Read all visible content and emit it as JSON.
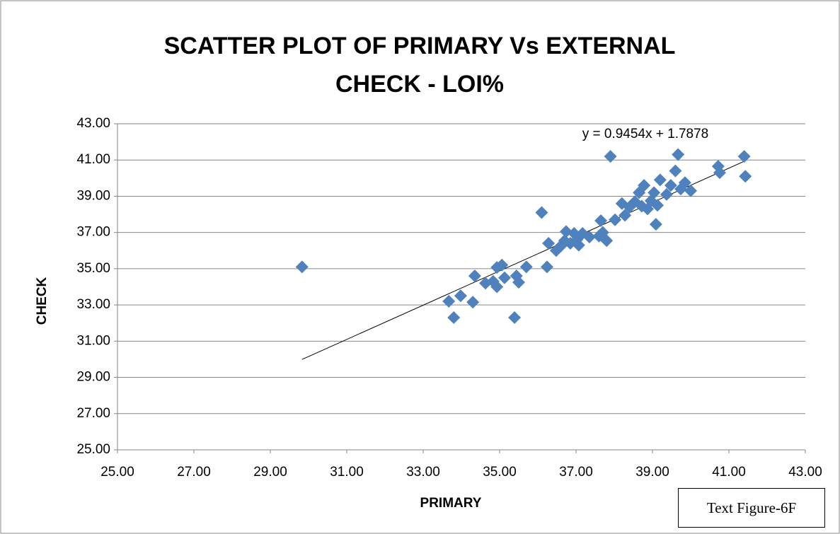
{
  "chart_data": {
    "type": "scatter",
    "title": "SCATTER PLOT OF PRIMARY Vs EXTERNAL CHECK - LOI%",
    "x_label": "PRIMARY",
    "y_label": "CHECK",
    "annotation": "Text Figure-6F",
    "trendline": {
      "slope": 0.9454,
      "intercept": 1.7878,
      "label": "y = 0.9454x + 1.7878"
    },
    "color": "#4f81bd",
    "grid": true,
    "xlim": [
      25,
      43
    ],
    "ylim": [
      25,
      43
    ],
    "xticks": [
      {
        "value": 25,
        "label": "25.00"
      },
      {
        "value": 27,
        "label": "27.00"
      },
      {
        "value": 29,
        "label": "29.00"
      },
      {
        "value": 31,
        "label": "31.00"
      },
      {
        "value": 33,
        "label": "33.00"
      },
      {
        "value": 35,
        "label": "35.00"
      },
      {
        "value": 37,
        "label": "37.00"
      },
      {
        "value": 39,
        "label": "39.00"
      },
      {
        "value": 41,
        "label": "41.00"
      },
      {
        "value": 43,
        "label": "43.00"
      }
    ],
    "yticks": [
      {
        "value": 25,
        "label": "25.00"
      },
      {
        "value": 27,
        "label": "27.00"
      },
      {
        "value": 29,
        "label": "29.00"
      },
      {
        "value": 31,
        "label": "31.00"
      },
      {
        "value": 33,
        "label": "33.00"
      },
      {
        "value": 35,
        "label": "35.00"
      },
      {
        "value": 37,
        "label": "37.00"
      },
      {
        "value": 39,
        "label": "39.00"
      },
      {
        "value": 41,
        "label": "41.00"
      },
      {
        "value": 43,
        "label": "43.00"
      }
    ],
    "x": [
      29.83,
      33.67,
      33.8,
      33.98,
      34.3,
      34.35,
      34.63,
      34.83,
      34.93,
      34.93,
      35.06,
      35.13,
      35.39,
      35.44,
      35.5,
      35.7,
      36.1,
      36.24,
      36.28,
      36.48,
      36.6,
      36.7,
      36.74,
      36.85,
      36.95,
      37.02,
      37.07,
      37.17,
      37.35,
      37.6,
      37.65,
      37.7,
      37.8,
      37.9,
      38.02,
      38.2,
      38.28,
      38.4,
      38.54,
      38.65,
      38.72,
      38.78,
      38.87,
      38.96,
      39.04,
      39.09,
      39.13,
      39.2,
      39.37,
      39.48,
      39.6,
      39.67,
      39.74,
      39.85,
      40.0,
      40.72,
      40.76,
      41.4,
      41.43
    ],
    "values": [
      35.1,
      33.2,
      32.3,
      33.5,
      33.15,
      34.6,
      34.2,
      34.3,
      34.0,
      35.07,
      35.2,
      34.5,
      32.3,
      34.6,
      34.25,
      35.1,
      38.1,
      35.1,
      36.4,
      36.0,
      36.25,
      36.55,
      37.05,
      36.4,
      36.95,
      36.6,
      36.3,
      36.95,
      36.75,
      36.8,
      37.65,
      37.0,
      36.55,
      41.2,
      37.7,
      38.6,
      37.95,
      38.4,
      38.7,
      39.2,
      38.45,
      39.6,
      38.3,
      38.75,
      39.2,
      37.45,
      38.5,
      39.9,
      39.1,
      39.6,
      40.4,
      41.3,
      39.4,
      39.75,
      39.3,
      40.65,
      40.3,
      41.2,
      40.1
    ]
  }
}
